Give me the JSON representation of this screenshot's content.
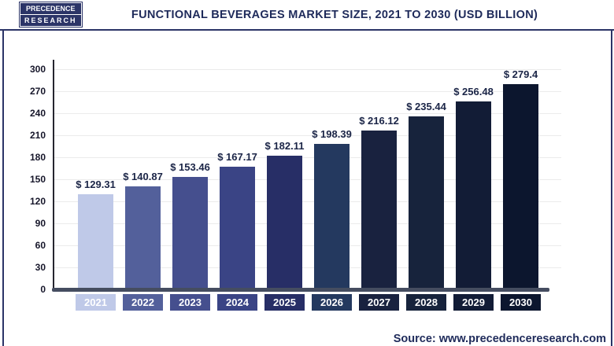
{
  "header": {
    "logo_line1": "PRECEDENCE",
    "logo_line2": "RESEARCH",
    "title": "FUNCTIONAL BEVERAGES MARKET SIZE, 2021 TO 2030 (USD BILLION)"
  },
  "chart_data": {
    "type": "bar",
    "title": "Functional Beverages Market Size, 2021 to 2030 (USD Billion)",
    "categories": [
      "2021",
      "2022",
      "2023",
      "2024",
      "2025",
      "2026",
      "2027",
      "2028",
      "2029",
      "2030"
    ],
    "values": [
      129.31,
      140.87,
      153.46,
      167.17,
      182.11,
      198.39,
      216.12,
      235.44,
      256.48,
      279.4
    ],
    "value_labels": [
      "$ 129.31",
      "$ 140.87",
      "$ 153.46",
      "$ 167.17",
      "$ 182.11",
      "$ 198.39",
      "$ 216.12",
      "$ 235.44",
      "$ 256.48",
      "$ 279.4"
    ],
    "bar_colors": [
      "#bfc9e8",
      "#53609b",
      "#454f8e",
      "#3a4485",
      "#272e66",
      "#24395f",
      "#19223f",
      "#17233c",
      "#121c36",
      "#0c162e"
    ],
    "xlabel": "",
    "ylabel": "",
    "ylim": [
      0,
      300
    ],
    "yticks": [
      0,
      30,
      60,
      90,
      120,
      150,
      180,
      210,
      240,
      270,
      300
    ],
    "grid": true,
    "legend": "none",
    "currency_prefix": "$"
  },
  "footer": {
    "source": "Source: www.precedenceresearch.com"
  },
  "colors": {
    "accent_navy": "#2b3467",
    "title_text": "#1e2a5a",
    "axis_line": "#26262f",
    "baseline": "#454d60",
    "gridline": "#ebebeb",
    "value_label_text": "#1b2547",
    "year_label_text": "#ffffff",
    "background": "#ffffff"
  }
}
